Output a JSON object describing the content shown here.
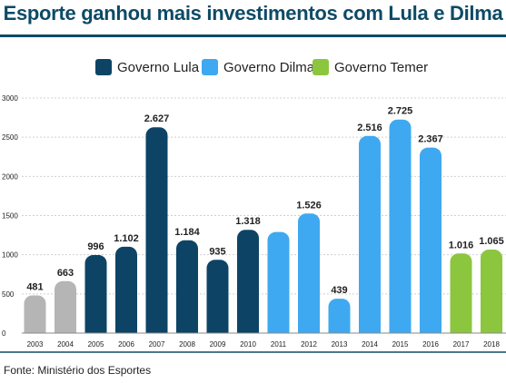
{
  "title": "Esporte ganhou mais investimentos com Lula e Dilma",
  "source": "Fonte: Ministério dos Esportes",
  "legend": [
    {
      "label": "Governo Lula",
      "color": "#0d4466"
    },
    {
      "label": "Governo Dilma",
      "color": "#3ea9f0"
    },
    {
      "label": "Governo Temer",
      "color": "#8cc63f"
    }
  ],
  "chart_data": {
    "type": "bar",
    "categories": [
      "2003",
      "2004",
      "2005",
      "2006",
      "2007",
      "2008",
      "2009",
      "2010",
      "2011",
      "2012",
      "2013",
      "2014",
      "2015",
      "2016",
      "2017",
      "2018"
    ],
    "values": [
      481,
      663,
      996,
      1102,
      2627,
      1184,
      935,
      1318,
      1290,
      1526,
      439,
      2516,
      2725,
      2367,
      1016,
      1065
    ],
    "value_labels": [
      "481",
      "663",
      "996",
      "1.102",
      "2.627",
      "1.184",
      "935",
      "1.318",
      "",
      "1.526",
      "439",
      "2.516",
      "2.725",
      "2.367",
      "1.016",
      "1.065"
    ],
    "colors": [
      "#b5b5b5",
      "#b5b5b5",
      "#0d4466",
      "#0d4466",
      "#0d4466",
      "#0d4466",
      "#0d4466",
      "#0d4466",
      "#3ea9f0",
      "#3ea9f0",
      "#3ea9f0",
      "#3ea9f0",
      "#3ea9f0",
      "#3ea9f0",
      "#8cc63f",
      "#8cc63f"
    ],
    "yticks": [
      "0",
      "500",
      "1000",
      "1500",
      "2000",
      "2500",
      "3000"
    ],
    "ylim": [
      0,
      3000
    ],
    "grid": true,
    "legend_position": "top-center"
  }
}
